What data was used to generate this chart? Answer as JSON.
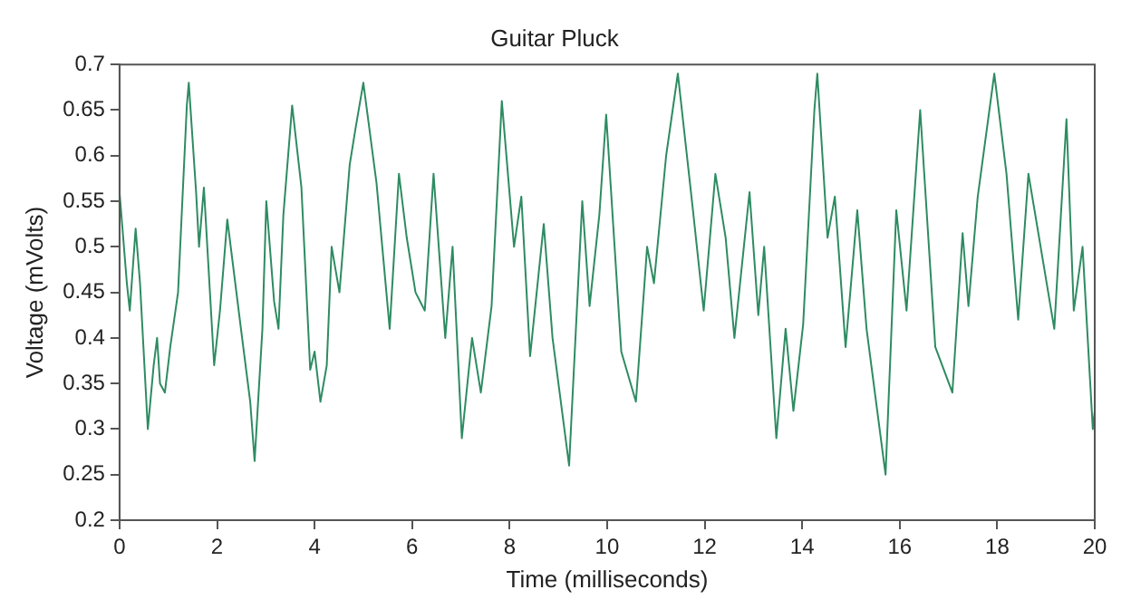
{
  "chart_data": {
    "type": "line",
    "title": "Guitar Pluck",
    "xlabel": "Time (milliseconds)",
    "ylabel": "Voltage (mVolts)",
    "x": [
      0,
      0.15,
      0.21,
      0.33,
      0.42,
      0.58,
      0.7,
      0.77,
      0.83,
      0.93,
      1.04,
      1.2,
      1.38,
      1.42,
      1.57,
      1.63,
      1.73,
      1.94,
      2.06,
      2.21,
      2.49,
      2.68,
      2.77,
      2.93,
      3.01,
      3.17,
      3.26,
      3.36,
      3.54,
      3.73,
      3.91,
      4.0,
      4.12,
      4.25,
      4.35,
      4.51,
      4.72,
      4.84,
      5.0,
      5.27,
      5.54,
      5.73,
      5.89,
      6.07,
      6.26,
      6.44,
      6.68,
      6.83,
      7.02,
      7.23,
      7.41,
      7.63,
      7.84,
      8.09,
      8.24,
      8.42,
      8.7,
      8.88,
      9.22,
      9.49,
      9.64,
      9.84,
      9.98,
      10.29,
      10.59,
      10.82,
      10.96,
      11.21,
      11.45,
      11.76,
      11.98,
      12.22,
      12.43,
      12.61,
      12.92,
      13.1,
      13.22,
      13.47,
      13.66,
      13.82,
      14.02,
      14.25,
      14.31,
      14.52,
      14.67,
      14.89,
      15.13,
      15.32,
      15.71,
      15.93,
      16.14,
      16.42,
      16.73,
      17.08,
      17.29,
      17.41,
      17.6,
      17.94,
      18.19,
      18.43,
      18.64,
      18.89,
      19.17,
      19.42,
      19.57,
      19.75,
      19.96,
      20
    ],
    "series": [
      {
        "color": "#2e8b62",
        "values": [
          0.56,
          0.46,
          0.43,
          0.52,
          0.46,
          0.3,
          0.37,
          0.4,
          0.35,
          0.34,
          0.39,
          0.45,
          0.655,
          0.68,
          0.56,
          0.5,
          0.565,
          0.37,
          0.43,
          0.53,
          0.41,
          0.33,
          0.265,
          0.41,
          0.55,
          0.44,
          0.41,
          0.535,
          0.655,
          0.565,
          0.365,
          0.385,
          0.33,
          0.37,
          0.5,
          0.45,
          0.59,
          0.63,
          0.68,
          0.57,
          0.41,
          0.58,
          0.51,
          0.45,
          0.43,
          0.58,
          0.4,
          0.5,
          0.29,
          0.4,
          0.34,
          0.435,
          0.66,
          0.5,
          0.555,
          0.38,
          0.525,
          0.4,
          0.26,
          0.55,
          0.435,
          0.535,
          0.645,
          0.385,
          0.33,
          0.5,
          0.46,
          0.6,
          0.69,
          0.54,
          0.43,
          0.58,
          0.51,
          0.4,
          0.56,
          0.425,
          0.5,
          0.29,
          0.41,
          0.32,
          0.415,
          0.65,
          0.69,
          0.51,
          0.555,
          0.39,
          0.54,
          0.41,
          0.25,
          0.54,
          0.43,
          0.65,
          0.39,
          0.34,
          0.515,
          0.435,
          0.555,
          0.69,
          0.58,
          0.42,
          0.58,
          0.5,
          0.41,
          0.64,
          0.43,
          0.5,
          0.3,
          0.32
        ]
      }
    ],
    "xlim": [
      0,
      20
    ],
    "xticks": [
      0,
      2,
      4,
      6,
      8,
      10,
      12,
      14,
      16,
      18,
      20
    ],
    "ylim": [
      0.2,
      0.7
    ],
    "yticks": [
      0.2,
      0.25,
      0.3,
      0.35,
      0.4,
      0.45,
      0.5,
      0.55,
      0.6,
      0.65,
      0.7
    ],
    "grid": false,
    "legend": false,
    "marker": "none",
    "line_style": "solid"
  }
}
